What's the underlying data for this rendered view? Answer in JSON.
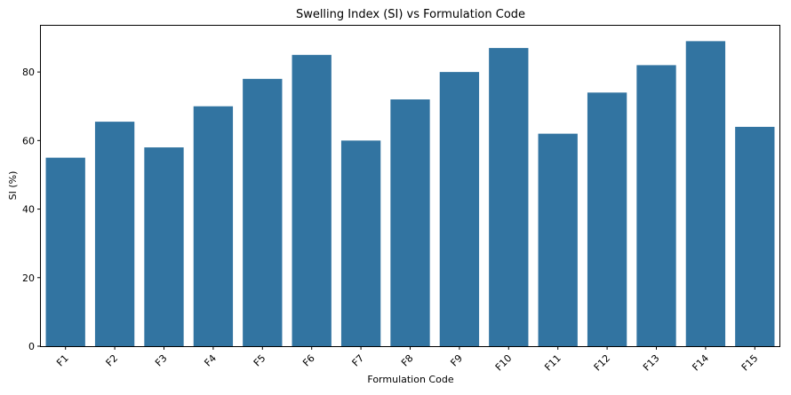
{
  "chart_data": {
    "type": "bar",
    "title": "Swelling Index (SI) vs Formulation Code",
    "xlabel": "Formulation Code",
    "ylabel": "SI (%)",
    "categories": [
      "F1",
      "F2",
      "F3",
      "F4",
      "F5",
      "F6",
      "F7",
      "F8",
      "F9",
      "F10",
      "F11",
      "F12",
      "F13",
      "F14",
      "F15"
    ],
    "values": [
      55,
      65.5,
      58,
      70,
      78,
      85,
      60,
      72,
      80,
      87,
      62,
      74,
      82,
      89,
      64
    ],
    "ylim": [
      0,
      93.5
    ],
    "yticks": [
      0,
      20,
      40,
      60,
      80
    ],
    "bar_color": "#3274a1",
    "grid": false,
    "legend": "none"
  }
}
